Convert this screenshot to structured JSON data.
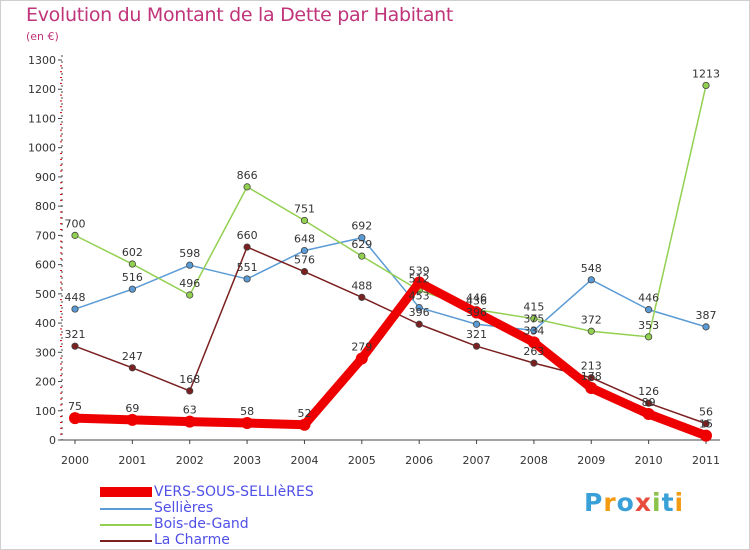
{
  "chart_data": {
    "type": "line",
    "title": "Evolution du Montant de la Dette par Habitant",
    "subtitle": "(en €)",
    "categories": [
      "2000",
      "2001",
      "2002",
      "2003",
      "2004",
      "2005",
      "2006",
      "2007",
      "2008",
      "2009",
      "2010",
      "2011"
    ],
    "ylim": [
      0,
      1300
    ],
    "yticks": [
      0,
      100,
      200,
      300,
      400,
      500,
      600,
      700,
      800,
      900,
      1000,
      1100,
      1200,
      1300
    ],
    "grid": false,
    "legend_position": "bottom-left",
    "series": [
      {
        "name": "VERS-SOUS-SELLIèRES",
        "color": "#ee0000",
        "values": [
          75,
          69,
          63,
          58,
          52,
          279,
          539,
          436,
          334,
          178,
          89,
          15
        ]
      },
      {
        "name": "Sellières",
        "color": "#5b9bd5",
        "values": [
          448,
          516,
          598,
          551,
          648,
          692,
          453,
          396,
          375,
          548,
          446,
          387
        ]
      },
      {
        "name": "Bois-de-Gand",
        "color": "#92d050",
        "values": [
          700,
          602,
          496,
          866,
          751,
          629,
          512,
          446,
          415,
          372,
          353,
          1213
        ]
      },
      {
        "name": "La Charme",
        "color": "#7b2020",
        "values": [
          321,
          247,
          168,
          660,
          576,
          488,
          396,
          321,
          263,
          213,
          126,
          56
        ]
      }
    ]
  },
  "branding": {
    "logo_text": "Proxiti"
  }
}
